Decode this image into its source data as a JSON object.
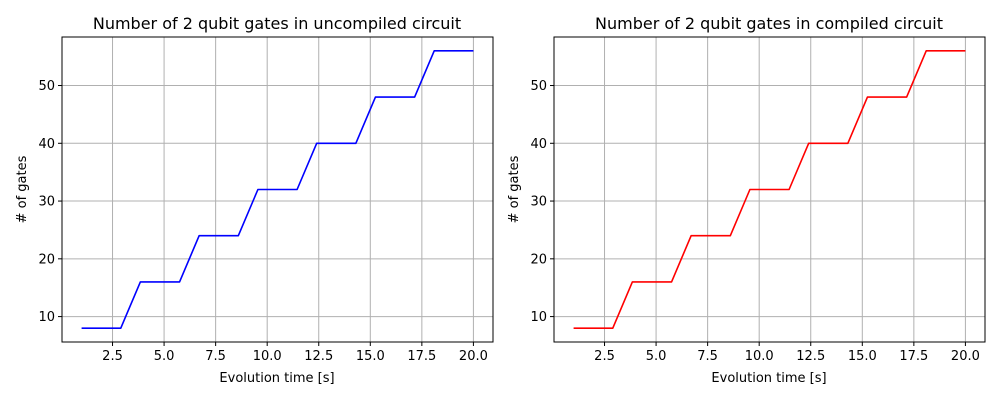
{
  "chart_data": [
    {
      "type": "line",
      "title": "Number of 2 qubit gates in uncompiled circuit",
      "xlabel": "Evolution time [s]",
      "ylabel": "# of gates",
      "xlim": [
        0.05,
        20.95
      ],
      "ylim": [
        5.6,
        58.4
      ],
      "xticks": [
        2.5,
        5.0,
        7.5,
        10.0,
        12.5,
        15.0,
        17.5,
        20.0
      ],
      "xtick_labels": [
        "2.5",
        "5.0",
        "7.5",
        "10.0",
        "12.5",
        "15.0",
        "17.5",
        "20.0"
      ],
      "yticks": [
        10,
        20,
        30,
        40,
        50
      ],
      "ytick_labels": [
        "10",
        "20",
        "30",
        "40",
        "50"
      ],
      "grid": true,
      "series": [
        {
          "name": "uncompiled",
          "color": "#0000ff",
          "x": [
            1.0,
            1.95,
            2.9,
            3.85,
            4.8,
            5.75,
            6.7,
            7.65,
            8.6,
            9.55,
            10.5,
            11.45,
            12.4,
            13.35,
            14.3,
            15.25,
            16.2,
            17.15,
            18.1,
            19.05,
            20.0
          ],
          "y": [
            8,
            8,
            8,
            16,
            16,
            16,
            24,
            24,
            24,
            32,
            32,
            32,
            40,
            40,
            40,
            48,
            48,
            48,
            56,
            56,
            56
          ]
        }
      ]
    },
    {
      "type": "line",
      "title": "Number of 2 qubit gates in compiled circuit",
      "xlabel": "Evolution time [s]",
      "ylabel": "# of gates",
      "xlim": [
        0.05,
        20.95
      ],
      "ylim": [
        5.6,
        58.4
      ],
      "xticks": [
        2.5,
        5.0,
        7.5,
        10.0,
        12.5,
        15.0,
        17.5,
        20.0
      ],
      "xtick_labels": [
        "2.5",
        "5.0",
        "7.5",
        "10.0",
        "12.5",
        "15.0",
        "17.5",
        "20.0"
      ],
      "yticks": [
        10,
        20,
        30,
        40,
        50
      ],
      "ytick_labels": [
        "10",
        "20",
        "30",
        "40",
        "50"
      ],
      "grid": true,
      "series": [
        {
          "name": "compiled",
          "color": "#ff0000",
          "x": [
            1.0,
            1.95,
            2.9,
            3.85,
            4.8,
            5.75,
            6.7,
            7.65,
            8.6,
            9.55,
            10.5,
            11.45,
            12.4,
            13.35,
            14.3,
            15.25,
            16.2,
            17.15,
            18.1,
            19.05,
            20.0
          ],
          "y": [
            8,
            8,
            8,
            16,
            16,
            16,
            24,
            24,
            24,
            32,
            32,
            32,
            40,
            40,
            40,
            48,
            48,
            48,
            56,
            56,
            56
          ]
        }
      ]
    }
  ]
}
